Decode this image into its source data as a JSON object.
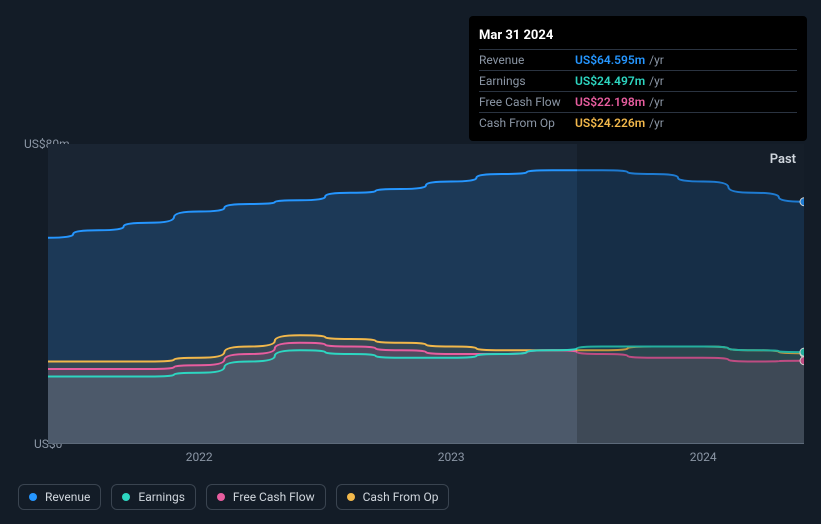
{
  "tooltip": {
    "date": "Mar 31 2024",
    "rows": [
      {
        "label": "Revenue",
        "value": "US$64.595m",
        "suffix": "/yr",
        "color": "#2596ff"
      },
      {
        "label": "Earnings",
        "value": "US$24.497m",
        "suffix": "/yr",
        "color": "#2dd6c1"
      },
      {
        "label": "Free Cash Flow",
        "value": "US$22.198m",
        "suffix": "/yr",
        "color": "#e85d9f"
      },
      {
        "label": "Cash From Op",
        "value": "US$24.226m",
        "suffix": "/yr",
        "color": "#f2b84b"
      }
    ]
  },
  "chart": {
    "type": "area",
    "background_color": "#1a2533",
    "page_background": "#131c27",
    "past_label": "Past",
    "x_range": [
      2021.4,
      2024.4
    ],
    "x_ticks": [
      2022,
      2023,
      2024
    ],
    "y_range": [
      0,
      80
    ],
    "y_ticks": [
      {
        "value": 0,
        "label": "US$0"
      },
      {
        "value": 80,
        "label": "US$80m"
      }
    ],
    "overlay_shade": {
      "from_x": 2023.5,
      "to_x": 2024.4
    },
    "marker_x": 2024.4,
    "series": [
      {
        "name": "Revenue",
        "color": "#2596ff",
        "fill": "rgba(37,150,255,0.18)",
        "points": [
          [
            2021.4,
            55
          ],
          [
            2021.6,
            57
          ],
          [
            2021.8,
            59
          ],
          [
            2022.0,
            62
          ],
          [
            2022.2,
            64
          ],
          [
            2022.4,
            65
          ],
          [
            2022.6,
            67
          ],
          [
            2022.8,
            68
          ],
          [
            2023.0,
            70
          ],
          [
            2023.2,
            72
          ],
          [
            2023.4,
            73
          ],
          [
            2023.6,
            73
          ],
          [
            2023.8,
            72
          ],
          [
            2024.0,
            70
          ],
          [
            2024.2,
            67
          ],
          [
            2024.4,
            64.6
          ]
        ]
      },
      {
        "name": "Cash From Op",
        "color": "#f2b84b",
        "fill": "rgba(242,184,75,0.12)",
        "points": [
          [
            2021.4,
            22
          ],
          [
            2021.6,
            22
          ],
          [
            2021.8,
            22
          ],
          [
            2022.0,
            23
          ],
          [
            2022.2,
            26
          ],
          [
            2022.4,
            29
          ],
          [
            2022.6,
            28
          ],
          [
            2022.8,
            27
          ],
          [
            2023.0,
            26
          ],
          [
            2023.2,
            25
          ],
          [
            2023.4,
            25
          ],
          [
            2023.6,
            25
          ],
          [
            2023.8,
            26
          ],
          [
            2024.0,
            26
          ],
          [
            2024.2,
            25
          ],
          [
            2024.4,
            24.2
          ]
        ]
      },
      {
        "name": "Free Cash Flow",
        "color": "#e85d9f",
        "fill": "rgba(232,93,159,0.15)",
        "points": [
          [
            2021.4,
            20
          ],
          [
            2021.6,
            20
          ],
          [
            2021.8,
            20
          ],
          [
            2022.0,
            21
          ],
          [
            2022.2,
            24
          ],
          [
            2022.4,
            27
          ],
          [
            2022.6,
            26
          ],
          [
            2022.8,
            25
          ],
          [
            2023.0,
            24
          ],
          [
            2023.2,
            24
          ],
          [
            2023.4,
            25
          ],
          [
            2023.6,
            24
          ],
          [
            2023.8,
            23
          ],
          [
            2024.0,
            23
          ],
          [
            2024.2,
            22
          ],
          [
            2024.4,
            22.2
          ]
        ]
      },
      {
        "name": "Earnings",
        "color": "#2dd6c1",
        "fill": "rgba(45,214,193,0.10)",
        "points": [
          [
            2021.4,
            18
          ],
          [
            2021.6,
            18
          ],
          [
            2021.8,
            18
          ],
          [
            2022.0,
            19
          ],
          [
            2022.2,
            22
          ],
          [
            2022.4,
            25
          ],
          [
            2022.6,
            24
          ],
          [
            2022.8,
            23
          ],
          [
            2023.0,
            23
          ],
          [
            2023.2,
            24
          ],
          [
            2023.4,
            25
          ],
          [
            2023.6,
            26
          ],
          [
            2023.8,
            26
          ],
          [
            2024.0,
            26
          ],
          [
            2024.2,
            25
          ],
          [
            2024.4,
            24.5
          ]
        ]
      }
    ],
    "legend": [
      {
        "label": "Revenue",
        "color": "#2596ff"
      },
      {
        "label": "Earnings",
        "color": "#2dd6c1"
      },
      {
        "label": "Free Cash Flow",
        "color": "#e85d9f"
      },
      {
        "label": "Cash From Op",
        "color": "#f2b84b"
      }
    ]
  }
}
